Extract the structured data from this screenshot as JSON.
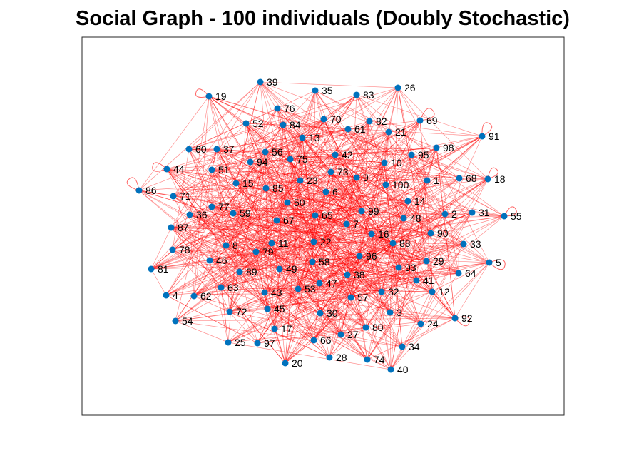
{
  "figure": {
    "title": "Social Graph - 100 individuals (Doubly Stochastic)"
  },
  "style": {
    "edge_color": "#ff0000",
    "node_color": "#0072bd",
    "axes_border": "#262626"
  },
  "graph": {
    "type": "directed graph",
    "node_count": 100,
    "nodes": [
      "1",
      "2",
      "3",
      "4",
      "5",
      "6",
      "7",
      "8",
      "9",
      "10",
      "11",
      "12",
      "13",
      "14",
      "15",
      "16",
      "17",
      "18",
      "19",
      "20",
      "21",
      "22",
      "23",
      "24",
      "25",
      "26",
      "27",
      "28",
      "29",
      "30",
      "31",
      "32",
      "33",
      "34",
      "35",
      "36",
      "37",
      "38",
      "39",
      "40",
      "41",
      "42",
      "43",
      "44",
      "45",
      "46",
      "47",
      "48",
      "49",
      "50",
      "51",
      "52",
      "53",
      "54",
      "55",
      "56",
      "57",
      "58",
      "59",
      "60",
      "61",
      "62",
      "63",
      "64",
      "65",
      "66",
      "67",
      "68",
      "69",
      "70",
      "71",
      "72",
      "73",
      "74",
      "75",
      "76",
      "77",
      "78",
      "79",
      "80",
      "81",
      "82",
      "83",
      "84",
      "85",
      "86",
      "87",
      "88",
      "89",
      "90",
      "91",
      "92",
      "93",
      "94",
      "95",
      "96",
      "97",
      "98",
      "99",
      "100"
    ]
  }
}
